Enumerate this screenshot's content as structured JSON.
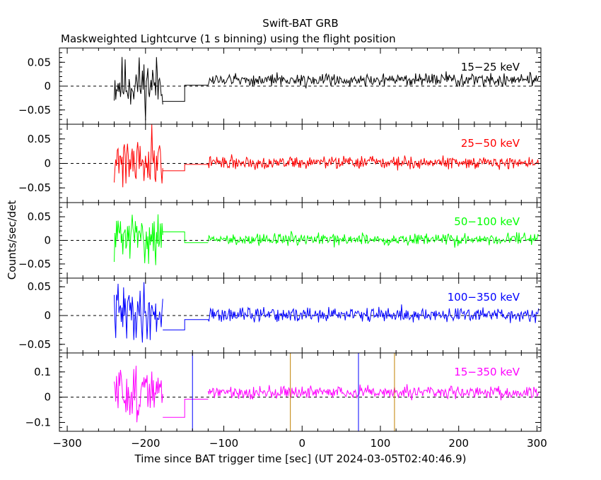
{
  "title": "Swift-BAT GRB",
  "subtitle": "Maskweighted Lightcurve (1 s binning) using the flight position",
  "xlabel": "Time since BAT trigger time [sec] (UT 2024-03-05T02:40:46.9)",
  "ylabel": "Counts/sec/det",
  "chart_data": {
    "type": "line",
    "title": "Swift-BAT GRB",
    "subtitle": "Maskweighted Lightcurve (1 s binning) using the flight position",
    "xlabel": "Time since BAT trigger time [sec] (UT 2024-03-05T02:40:46.9)",
    "ylabel": "Counts/sec/det",
    "xlim": [
      -310,
      305
    ],
    "xticks": [
      -300,
      -200,
      -100,
      0,
      100,
      200,
      300
    ],
    "xtick_labels": [
      "−300",
      "−200",
      "−100",
      "0",
      "100",
      "200",
      "300"
    ],
    "grid": false,
    "panels": [
      {
        "name": "15−25 keV",
        "color": "#000000",
        "ylim": [
          -0.08,
          0.08
        ],
        "yticks": [
          -0.05,
          0,
          0.05
        ],
        "ytick_labels": [
          "−0.05",
          "0",
          "0.05"
        ],
        "segments": [
          {
            "kind": "noise",
            "t0": -240,
            "t1": -178,
            "mean": 0.005,
            "amp": 0.035,
            "seed": 11
          },
          {
            "kind": "steps",
            "points": [
              [
                -178,
                -0.032
              ],
              [
                -150,
                -0.032
              ],
              [
                -150,
                0.002
              ],
              [
                -120,
                0.002
              ]
            ]
          },
          {
            "kind": "noise",
            "t0": -120,
            "t1": 302,
            "mean": 0.013,
            "amp": 0.008,
            "seed": 12
          }
        ],
        "vlines": []
      },
      {
        "name": "25−50 keV",
        "color": "#ff0000",
        "ylim": [
          -0.08,
          0.08
        ],
        "yticks": [
          -0.05,
          0,
          0.05
        ],
        "ytick_labels": [
          "−0.05",
          "0",
          "0.05"
        ],
        "segments": [
          {
            "kind": "noise",
            "t0": -240,
            "t1": -178,
            "mean": 0.01,
            "amp": 0.035,
            "seed": 21
          },
          {
            "kind": "steps",
            "points": [
              [
                -178,
                -0.015
              ],
              [
                -150,
                -0.015
              ],
              [
                -150,
                -0.002
              ],
              [
                -120,
                -0.002
              ]
            ]
          },
          {
            "kind": "noise",
            "t0": -120,
            "t1": 302,
            "mean": 0.002,
            "amp": 0.008,
            "seed": 22
          }
        ],
        "vlines": []
      },
      {
        "name": "50−100 keV",
        "color": "#00ff00",
        "ylim": [
          -0.08,
          0.08
        ],
        "yticks": [
          -0.05,
          0,
          0.05
        ],
        "ytick_labels": [
          "−0.05",
          "0",
          "0.05"
        ],
        "segments": [
          {
            "kind": "noise",
            "t0": -240,
            "t1": -178,
            "mean": 0.008,
            "amp": 0.03,
            "seed": 31
          },
          {
            "kind": "steps",
            "points": [
              [
                -178,
                0.018
              ],
              [
                -150,
                0.018
              ],
              [
                -150,
                -0.005
              ],
              [
                -120,
                -0.005
              ]
            ]
          },
          {
            "kind": "noise",
            "t0": -120,
            "t1": 302,
            "mean": 0.002,
            "amp": 0.008,
            "seed": 32
          }
        ],
        "vlines": []
      },
      {
        "name": "100−350 keV",
        "color": "#0000ff",
        "ylim": [
          -0.065,
          0.065
        ],
        "yticks": [
          -0.05,
          0,
          0.05
        ],
        "ytick_labels": [
          "−0.05",
          "0",
          "0.05"
        ],
        "segments": [
          {
            "kind": "noise",
            "t0": -240,
            "t1": -178,
            "mean": 0.005,
            "amp": 0.03,
            "seed": 41
          },
          {
            "kind": "steps",
            "points": [
              [
                -178,
                -0.025
              ],
              [
                -150,
                -0.025
              ],
              [
                -150,
                -0.007
              ],
              [
                -120,
                -0.007
              ]
            ]
          },
          {
            "kind": "noise",
            "t0": -120,
            "t1": 302,
            "mean": 0.001,
            "amp": 0.008,
            "seed": 42
          }
        ],
        "vlines": []
      },
      {
        "name": "15−350 keV",
        "color": "#ff00ff",
        "ylim": [
          -0.135,
          0.175
        ],
        "yticks": [
          -0.1,
          0,
          0.1
        ],
        "ytick_labels": [
          "−0.1",
          "0",
          "0.1"
        ],
        "segments": [
          {
            "kind": "noise",
            "t0": -240,
            "t1": -178,
            "mean": 0.02,
            "amp": 0.065,
            "seed": 51
          },
          {
            "kind": "steps",
            "points": [
              [
                -178,
                -0.08
              ],
              [
                -150,
                -0.08
              ],
              [
                -150,
                -0.008
              ],
              [
                -120,
                -0.008
              ]
            ]
          },
          {
            "kind": "noise",
            "t0": -120,
            "t1": 302,
            "mean": 0.02,
            "amp": 0.015,
            "seed": 52
          }
        ],
        "vlines": [
          {
            "t": -140,
            "color": "#0000ff"
          },
          {
            "t": -15,
            "color": "#c08000"
          },
          {
            "t": 72,
            "color": "#0000ff"
          },
          {
            "t": 118,
            "color": "#c08000"
          }
        ]
      }
    ]
  }
}
